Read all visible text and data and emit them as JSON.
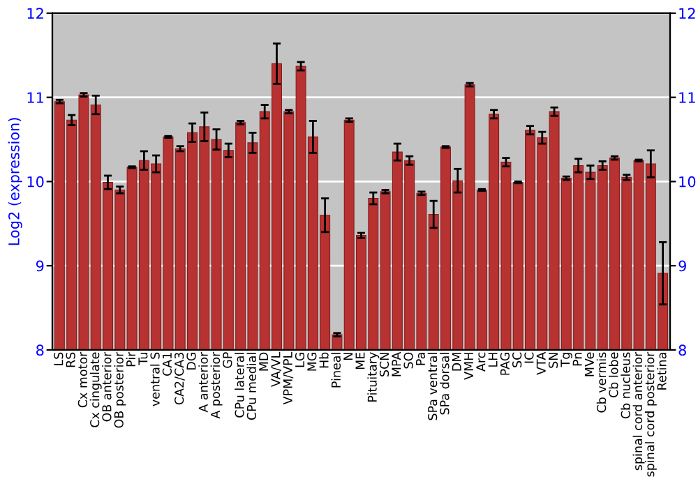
{
  "chart_data": {
    "type": "bar",
    "ylabel": "Log2 (expression)",
    "categories": [
      "LS",
      "RS",
      "Cx motor",
      "Cx cingulate",
      "OB anterior",
      "OB posterior",
      "Pir",
      "Tu",
      "ventral S",
      "CA1",
      "CA2/CA3",
      "DG",
      "A anterior",
      "A posterior",
      "GP",
      "CPu lateral",
      "CPu medial",
      "MD",
      "VA/VL",
      "VPM/VPL",
      "LG",
      "MG",
      "Hb",
      "Pineal",
      "N",
      "ME",
      "Pituitary",
      "SCN",
      "MPA",
      "SO",
      "Pa",
      "SPa ventral",
      "SPa dorsal",
      "DM",
      "VMH",
      "Arc",
      "LH",
      "PAG",
      "SC",
      "IC",
      "VTA",
      "SN",
      "Tg",
      "Pn",
      "MVe",
      "Cb vermis",
      "Cb lobe",
      "Cb nucleus",
      "spinal cord anterior",
      "spinal cord posterior",
      "Retina"
    ],
    "values": [
      10.95,
      10.73,
      11.03,
      10.91,
      9.99,
      9.9,
      10.17,
      10.25,
      10.21,
      10.53,
      10.39,
      10.58,
      10.65,
      10.5,
      10.37,
      10.7,
      10.46,
      10.83,
      11.4,
      10.83,
      11.37,
      10.53,
      9.6,
      8.18,
      10.73,
      9.36,
      9.8,
      9.88,
      10.35,
      10.25,
      9.86,
      9.61,
      10.41,
      10.01,
      11.15,
      9.9,
      10.8,
      10.23,
      9.99,
      10.61,
      10.52,
      10.83,
      10.04,
      10.19,
      10.11,
      10.19,
      10.28,
      10.05,
      10.25,
      10.21,
      8.91
    ],
    "errors": [
      0.02,
      0.06,
      0.02,
      0.11,
      0.08,
      0.04,
      0.01,
      0.11,
      0.1,
      0.01,
      0.03,
      0.11,
      0.17,
      0.12,
      0.08,
      0.02,
      0.12,
      0.08,
      0.24,
      0.02,
      0.05,
      0.19,
      0.2,
      0.02,
      0.02,
      0.03,
      0.07,
      0.02,
      0.1,
      0.05,
      0.02,
      0.16,
      0.01,
      0.14,
      0.02,
      0.01,
      0.05,
      0.05,
      0.01,
      0.05,
      0.07,
      0.05,
      0.02,
      0.08,
      0.08,
      0.05,
      0.02,
      0.03,
      0.01,
      0.16,
      0.37
    ],
    "color": "#b83232",
    "ylim": [
      8,
      12
    ],
    "yticks": [
      8,
      9,
      10,
      11,
      12
    ],
    "y2lim": [
      8,
      12
    ],
    "y2ticks": [
      8,
      9,
      10,
      11,
      12
    ],
    "grid": "y"
  }
}
